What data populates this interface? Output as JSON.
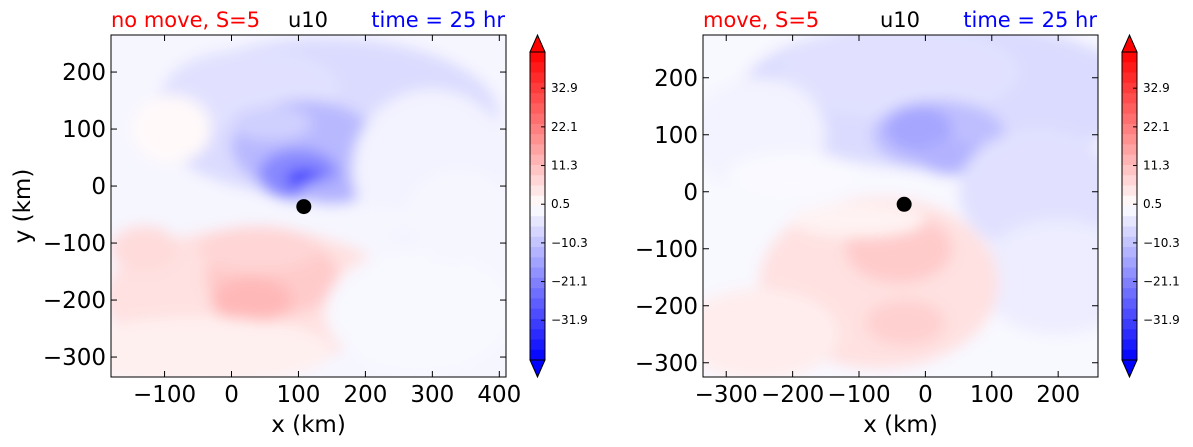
{
  "chart_data": [
    {
      "type": "heatmap",
      "title_left": "no move, S=5",
      "title_center": "u10",
      "title_right": "time = 25 hr",
      "xlabel": "x (km)",
      "ylabel": "y (km)",
      "xlim": [
        -180,
        410
      ],
      "ylim": [
        -335,
        265
      ],
      "xticks": [
        -100,
        0,
        100,
        200,
        300,
        400
      ],
      "yticks": [
        200,
        100,
        0,
        -100,
        -200,
        -300
      ],
      "marker": {
        "x": 108,
        "y": -36
      },
      "blobs": [
        {
          "x": 140,
          "y": 120,
          "rx": 260,
          "ry": 140,
          "v": -6
        },
        {
          "x": 30,
          "y": 170,
          "rx": 130,
          "ry": 70,
          "v": -5
        },
        {
          "x": 110,
          "y": 70,
          "rx": 110,
          "ry": 80,
          "v": -12
        },
        {
          "x": 100,
          "y": 20,
          "rx": 60,
          "ry": 45,
          "v": -20
        },
        {
          "x": 110,
          "y": 12,
          "rx": 28,
          "ry": 16,
          "v": -34
        },
        {
          "x": 150,
          "y": -10,
          "rx": 50,
          "ry": 22,
          "v": -13
        },
        {
          "x": 60,
          "y": 110,
          "rx": 60,
          "ry": 30,
          "v": -8
        },
        {
          "x": -90,
          "y": 100,
          "rx": 60,
          "ry": 60,
          "v": 1
        },
        {
          "x": 300,
          "y": 30,
          "rx": 120,
          "ry": 140,
          "v": -2
        },
        {
          "x": 150,
          "y": -60,
          "rx": 150,
          "ry": 28,
          "v": -1.5
        },
        {
          "x": 30,
          "y": -195,
          "rx": 220,
          "ry": 120,
          "v": 5
        },
        {
          "x": 60,
          "y": -160,
          "rx": 100,
          "ry": 70,
          "v": 9
        },
        {
          "x": 30,
          "y": -200,
          "rx": 60,
          "ry": 40,
          "v": 12
        },
        {
          "x": 40,
          "y": -110,
          "rx": 90,
          "ry": 40,
          "v": 7
        },
        {
          "x": -130,
          "y": -110,
          "rx": 50,
          "ry": 40,
          "v": 6
        },
        {
          "x": -50,
          "y": -290,
          "rx": 200,
          "ry": 60,
          "v": 2.5
        },
        {
          "x": 280,
          "y": -220,
          "rx": 140,
          "ry": 110,
          "v": -1.2
        },
        {
          "x": 340,
          "y": -50,
          "rx": 80,
          "ry": 80,
          "v": -1.5
        }
      ]
    },
    {
      "type": "heatmap",
      "title_left": "move, S=5",
      "title_center": "u10",
      "title_right": "time = 25 hr",
      "xlabel": "x (km)",
      "ylabel": "",
      "xlim": [
        -335,
        260
      ],
      "ylim": [
        -325,
        275
      ],
      "xticks": [
        -300,
        -200,
        -100,
        0,
        100,
        200
      ],
      "yticks": [
        200,
        100,
        0,
        -100,
        -200,
        -300
      ],
      "marker": {
        "x": -32,
        "y": -22
      },
      "blobs": [
        {
          "x": 20,
          "y": 170,
          "rx": 300,
          "ry": 130,
          "v": -6
        },
        {
          "x": -40,
          "y": 210,
          "rx": 180,
          "ry": 80,
          "v": -5
        },
        {
          "x": 20,
          "y": 100,
          "rx": 100,
          "ry": 60,
          "v": -11
        },
        {
          "x": -10,
          "y": 110,
          "rx": 50,
          "ry": 40,
          "v": -15
        },
        {
          "x": 40,
          "y": 60,
          "rx": 50,
          "ry": 30,
          "v": -13
        },
        {
          "x": 170,
          "y": 0,
          "rx": 120,
          "ry": 110,
          "v": -5
        },
        {
          "x": 200,
          "y": -150,
          "rx": 120,
          "ry": 100,
          "v": -3
        },
        {
          "x": -250,
          "y": 100,
          "rx": 100,
          "ry": 100,
          "v": -2
        },
        {
          "x": -70,
          "y": -160,
          "rx": 180,
          "ry": 150,
          "v": 5
        },
        {
          "x": -40,
          "y": -100,
          "rx": 80,
          "ry": 60,
          "v": 9
        },
        {
          "x": -30,
          "y": -230,
          "rx": 60,
          "ry": 40,
          "v": 8
        },
        {
          "x": -250,
          "y": -250,
          "rx": 120,
          "ry": 80,
          "v": 3
        },
        {
          "x": -100,
          "y": -50,
          "rx": 100,
          "ry": 30,
          "v": 2
        },
        {
          "x": -200,
          "y": 30,
          "rx": 100,
          "ry": 40,
          "v": -1
        }
      ]
    }
  ],
  "colorbar": {
    "vmin": -43,
    "vmax": 43,
    "tick_values": [
      32.9,
      22.1,
      11.3,
      0.5,
      -10.3,
      -21.1,
      -31.9
    ],
    "tick_labels": [
      "32.9",
      "22.1",
      "11.3",
      "0.5",
      "−10.3",
      "−21.1",
      "−31.9"
    ]
  },
  "colors": {
    "negative": "#0000ff",
    "positive": "#ff0000",
    "neutral": "#ffffff",
    "title_left": "#ff0000",
    "title_center": "#000000",
    "title_right": "#0000ff"
  }
}
